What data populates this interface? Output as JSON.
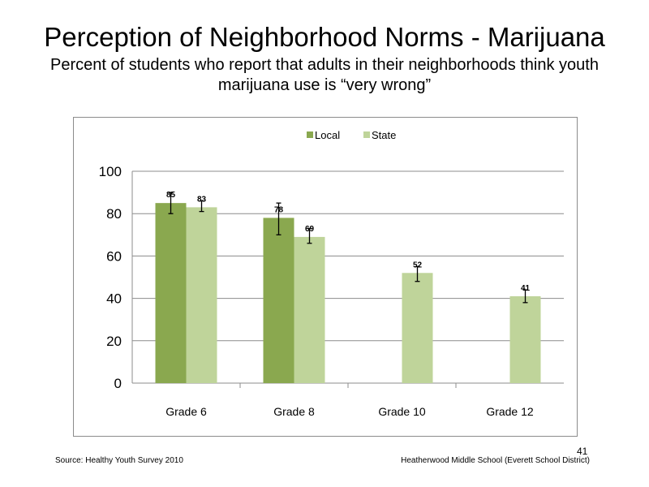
{
  "slide": {
    "title": "Perception  of Neighborhood  Norms - Marijuana",
    "subtitle": "Percent of students  who report that adults in their neighborhoods think youth marijuana  use is “very wrong”",
    "source": "Source: Healthy  Youth Survey 2010",
    "school": "Heatherwood Middle  School (Everett School District)",
    "page_number": "41"
  },
  "chart_data": {
    "type": "bar",
    "categories": [
      "Grade 6",
      "Grade 8",
      "Grade 10",
      "Grade 12"
    ],
    "series": [
      {
        "name": "Local",
        "color": "#8aa84f",
        "values": [
          85,
          78,
          null,
          null
        ],
        "labels": [
          "85",
          "78",
          "",
          ""
        ],
        "error_low": [
          80,
          70,
          null,
          null
        ],
        "error_high": [
          90,
          85,
          null,
          null
        ]
      },
      {
        "name": "State",
        "color": "#bfd49a",
        "values": [
          83,
          69,
          52,
          41
        ],
        "labels": [
          "83",
          "69",
          "52",
          "41"
        ],
        "error_low": [
          81,
          66,
          48,
          38
        ],
        "error_high": [
          86,
          73,
          55,
          44
        ]
      }
    ],
    "ylim": [
      0,
      100
    ],
    "yticks": [
      0,
      20,
      40,
      60,
      80,
      100
    ],
    "grid": true,
    "legend": "top-center"
  }
}
